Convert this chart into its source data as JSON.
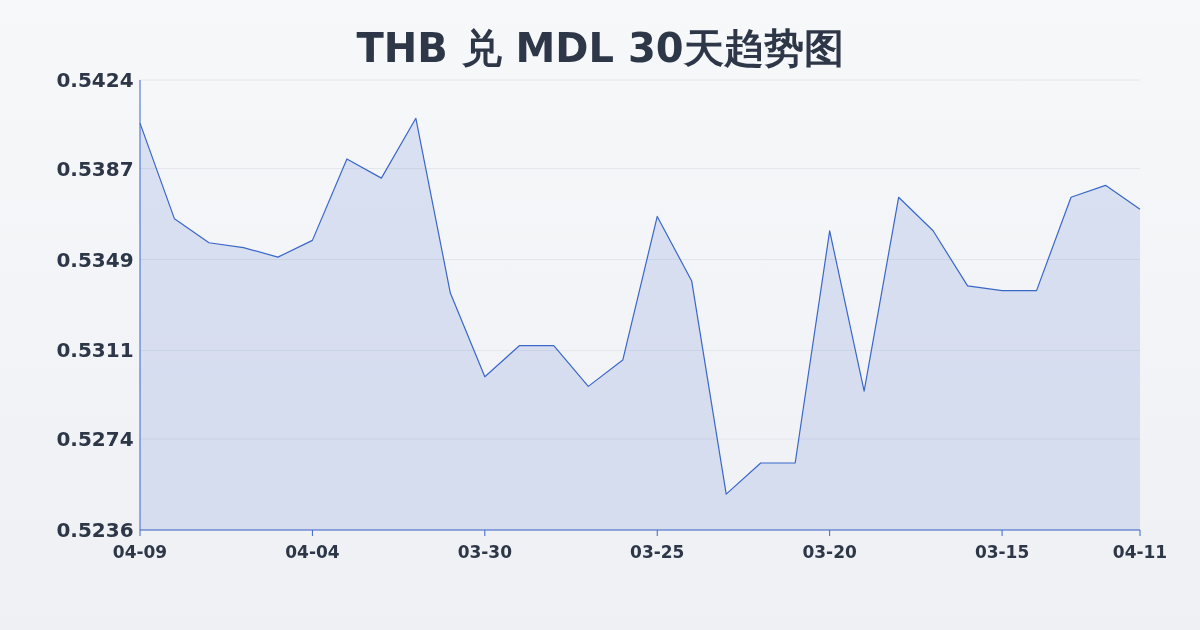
{
  "chart_data": {
    "type": "area",
    "title": "THB 兑 MDL 30天趋势图",
    "categories": [
      "04-09",
      null,
      null,
      null,
      null,
      "04-04",
      null,
      null,
      null,
      null,
      "03-30",
      null,
      null,
      null,
      null,
      "03-25",
      null,
      null,
      null,
      null,
      "03-20",
      null,
      null,
      null,
      null,
      "03-15",
      null,
      null,
      null,
      "04-11"
    ],
    "series": [
      {
        "color": "#3b67c9",
        "values": [
          0.5406,
          0.5366,
          0.5356,
          0.5354,
          0.535,
          0.5357,
          0.5391,
          0.5383,
          0.5408,
          0.5335,
          0.53,
          0.5313,
          0.5313,
          0.5296,
          0.5307,
          0.5367,
          0.534,
          0.5251,
          0.5264,
          0.5264,
          0.5361,
          0.5294,
          0.5375,
          0.5361,
          0.5338,
          0.5336,
          0.5336,
          0.5375,
          0.538,
          0.537
        ]
      }
    ],
    "ylim": [
      0.5236,
      0.5424
    ],
    "yticks": [
      0.5236,
      0.5274,
      0.5311,
      0.5349,
      0.5387,
      0.5424
    ],
    "grid": "y"
  }
}
